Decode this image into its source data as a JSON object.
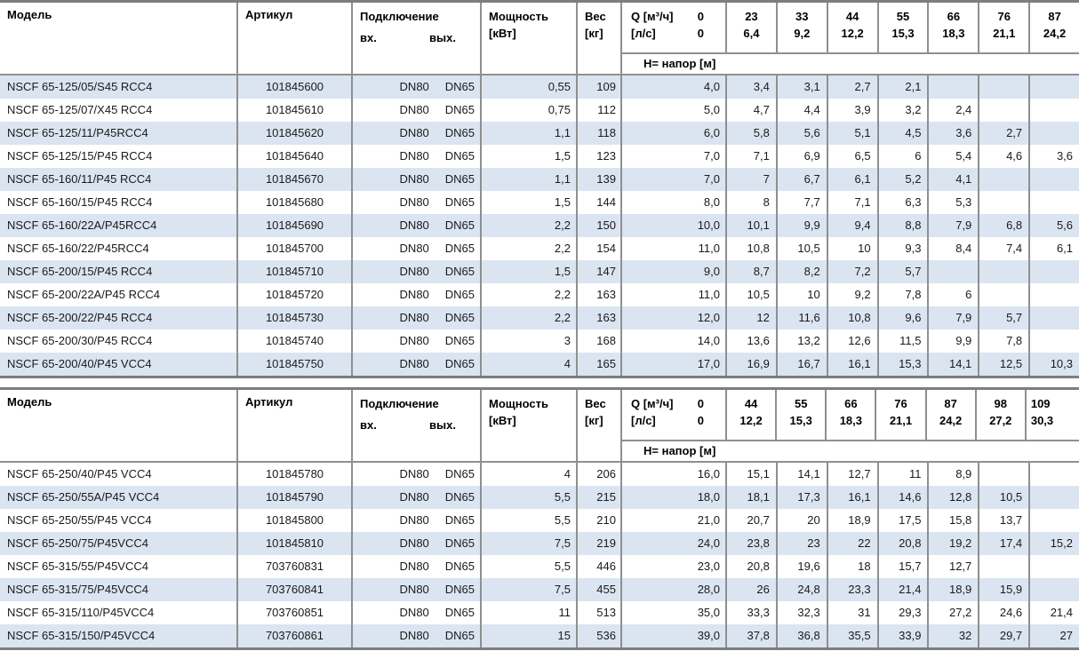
{
  "colors": {
    "row_stripe": "#dbe5f1",
    "grid_line": "#8f8f8f",
    "heavy_line": "#7d7d7d",
    "text": "#1a1a1a"
  },
  "tables": [
    {
      "header": {
        "model": "Модель",
        "article": "Артикул",
        "connection": "Подключение",
        "inlet": "вх.",
        "outlet": "вых.",
        "power_line1": "Мощность",
        "power_line2": "[кВт]",
        "weight_line1": "Вес",
        "weight_line2": "[кг]",
        "flow_line1": "Q [м³/ч]",
        "flow_line1_zero": "0",
        "flow_line2": "[л/с]",
        "flow_line2_zero": "0",
        "head_row_label": "Н= напор [м]"
      },
      "flow_columns": [
        {
          "m3h": "23",
          "ls": "6,4"
        },
        {
          "m3h": "33",
          "ls": "9,2"
        },
        {
          "m3h": "44",
          "ls": "12,2"
        },
        {
          "m3h": "55",
          "ls": "15,3"
        },
        {
          "m3h": "66",
          "ls": "18,3"
        },
        {
          "m3h": "76",
          "ls": "21,1"
        },
        {
          "m3h": "87",
          "ls": "24,2"
        }
      ],
      "rows": [
        {
          "model": "NSCF 65-125/05/S45 RCC4",
          "article": "101845600",
          "inlet": "DN80",
          "outlet": "DN65",
          "power": "0,55",
          "weight": "109",
          "head_q0": "4,0",
          "heads": [
            "3,4",
            "3,1",
            "2,7",
            "2,1",
            "",
            "",
            ""
          ]
        },
        {
          "model": "NSCF 65-125/07/X45 RCC4",
          "article": "101845610",
          "inlet": "DN80",
          "outlet": "DN65",
          "power": "0,75",
          "weight": "112",
          "head_q0": "5,0",
          "heads": [
            "4,7",
            "4,4",
            "3,9",
            "3,2",
            "2,4",
            "",
            ""
          ]
        },
        {
          "model": "NSCF 65-125/11/P45RCC4",
          "article": "101845620",
          "inlet": "DN80",
          "outlet": "DN65",
          "power": "1,1",
          "weight": "118",
          "head_q0": "6,0",
          "heads": [
            "5,8",
            "5,6",
            "5,1",
            "4,5",
            "3,6",
            "2,7",
            ""
          ]
        },
        {
          "model": "NSCF 65-125/15/P45 RCC4",
          "article": "101845640",
          "inlet": "DN80",
          "outlet": "DN65",
          "power": "1,5",
          "weight": "123",
          "head_q0": "7,0",
          "heads": [
            "7,1",
            "6,9",
            "6,5",
            "6",
            "5,4",
            "4,6",
            "3,6"
          ]
        },
        {
          "model": "NSCF 65-160/11/P45 RCC4",
          "article": "101845670",
          "inlet": "DN80",
          "outlet": "DN65",
          "power": "1,1",
          "weight": "139",
          "head_q0": "7,0",
          "heads": [
            "7",
            "6,7",
            "6,1",
            "5,2",
            "4,1",
            "",
            ""
          ]
        },
        {
          "model": "NSCF 65-160/15/P45 RCC4",
          "article": "101845680",
          "inlet": "DN80",
          "outlet": "DN65",
          "power": "1,5",
          "weight": "144",
          "head_q0": "8,0",
          "heads": [
            "8",
            "7,7",
            "7,1",
            "6,3",
            "5,3",
            "",
            ""
          ]
        },
        {
          "model": "NSCF 65-160/22A/P45RCC4",
          "article": "101845690",
          "inlet": "DN80",
          "outlet": "DN65",
          "power": "2,2",
          "weight": "150",
          "head_q0": "10,0",
          "heads": [
            "10,1",
            "9,9",
            "9,4",
            "8,8",
            "7,9",
            "6,8",
            "5,6"
          ]
        },
        {
          "model": "NSCF 65-160/22/P45RCC4",
          "article": "101845700",
          "inlet": "DN80",
          "outlet": "DN65",
          "power": "2,2",
          "weight": "154",
          "head_q0": "11,0",
          "heads": [
            "10,8",
            "10,5",
            "10",
            "9,3",
            "8,4",
            "7,4",
            "6,1"
          ]
        },
        {
          "model": "NSCF 65-200/15/P45 RCC4",
          "article": "101845710",
          "inlet": "DN80",
          "outlet": "DN65",
          "power": "1,5",
          "weight": "147",
          "head_q0": "9,0",
          "heads": [
            "8,7",
            "8,2",
            "7,2",
            "5,7",
            "",
            "",
            ""
          ]
        },
        {
          "model": "NSCF 65-200/22A/P45 RCC4",
          "article": "101845720",
          "inlet": "DN80",
          "outlet": "DN65",
          "power": "2,2",
          "weight": "163",
          "head_q0": "11,0",
          "heads": [
            "10,5",
            "10",
            "9,2",
            "7,8",
            "6",
            "",
            ""
          ]
        },
        {
          "model": "NSCF 65-200/22/P45 RCC4",
          "article": "101845730",
          "inlet": "DN80",
          "outlet": "DN65",
          "power": "2,2",
          "weight": "163",
          "head_q0": "12,0",
          "heads": [
            "12",
            "11,6",
            "10,8",
            "9,6",
            "7,9",
            "5,7",
            ""
          ]
        },
        {
          "model": "NSCF 65-200/30/P45 RCC4",
          "article": "101845740",
          "inlet": "DN80",
          "outlet": "DN65",
          "power": "3",
          "weight": "168",
          "head_q0": "14,0",
          "heads": [
            "13,6",
            "13,2",
            "12,6",
            "11,5",
            "9,9",
            "7,8",
            ""
          ]
        },
        {
          "model": "NSCF 65-200/40/P45 VCC4",
          "article": "101845750",
          "inlet": "DN80",
          "outlet": "DN65",
          "power": "4",
          "weight": "165",
          "head_q0": "17,0",
          "heads": [
            "16,9",
            "16,7",
            "16,1",
            "15,3",
            "14,1",
            "12,5",
            "10,3"
          ]
        }
      ]
    },
    {
      "header": {
        "model": "Модель",
        "article": "Артикул",
        "connection": "Подключение",
        "inlet": "вх.",
        "outlet": "вых.",
        "power_line1": "Мощность",
        "power_line2": "[кВт]",
        "weight_line1": "Вес",
        "weight_line2": "[кг]",
        "flow_line1": "Q [м³/ч]",
        "flow_line1_zero": "0",
        "flow_line2": "[л/с]",
        "flow_line2_zero": "0",
        "head_row_label": "Н= напор [м]"
      },
      "flow_columns": [
        {
          "m3h": "44",
          "ls": "12,2"
        },
        {
          "m3h": "55",
          "ls": "15,3"
        },
        {
          "m3h": "66",
          "ls": "18,3"
        },
        {
          "m3h": "76",
          "ls": "21,1"
        },
        {
          "m3h": "87",
          "ls": "24,2"
        },
        {
          "m3h": "98",
          "ls": "27,2"
        },
        {
          "m3h": "109",
          "ls": "30,3",
          "align": "left"
        }
      ],
      "rows": [
        {
          "model": "NSCF 65-250/40/P45 VCC4",
          "article": "101845780",
          "inlet": "DN80",
          "outlet": "DN65",
          "power": "4",
          "weight": "206",
          "head_q0": "16,0",
          "heads": [
            "15,1",
            "14,1",
            "12,7",
            "11",
            "8,9",
            "",
            ""
          ]
        },
        {
          "model": "NSCF 65-250/55A/P45 VCC4",
          "article": "101845790",
          "inlet": "DN80",
          "outlet": "DN65",
          "power": "5,5",
          "weight": "215",
          "head_q0": "18,0",
          "heads": [
            "18,1",
            "17,3",
            "16,1",
            "14,6",
            "12,8",
            "10,5",
            ""
          ]
        },
        {
          "model": "NSCF 65-250/55/P45 VCC4",
          "article": "101845800",
          "inlet": "DN80",
          "outlet": "DN65",
          "power": "5,5",
          "weight": "210",
          "head_q0": "21,0",
          "heads": [
            "20,7",
            "20",
            "18,9",
            "17,5",
            "15,8",
            "13,7",
            ""
          ]
        },
        {
          "model": "NSCF 65-250/75/P45VCC4",
          "article": "101845810",
          "inlet": "DN80",
          "outlet": "DN65",
          "power": "7,5",
          "weight": "219",
          "head_q0": "24,0",
          "heads": [
            "23,8",
            "23",
            "22",
            "20,8",
            "19,2",
            "17,4",
            "15,2"
          ]
        },
        {
          "model": "NSCF 65-315/55/P45VCC4",
          "article": "703760831",
          "inlet": "DN80",
          "outlet": "DN65",
          "power": "5,5",
          "weight": "446",
          "head_q0": "23,0",
          "heads": [
            "20,8",
            "19,6",
            "18",
            "15,7",
            "12,7",
            "",
            ""
          ]
        },
        {
          "model": "NSCF 65-315/75/P45VCC4",
          "article": "703760841",
          "inlet": "DN80",
          "outlet": "DN65",
          "power": "7,5",
          "weight": "455",
          "head_q0": "28,0",
          "heads": [
            "26",
            "24,8",
            "23,3",
            "21,4",
            "18,9",
            "15,9",
            ""
          ]
        },
        {
          "model": "NSCF 65-315/110/P45VCC4",
          "article": "703760851",
          "inlet": "DN80",
          "outlet": "DN65",
          "power": "11",
          "weight": "513",
          "head_q0": "35,0",
          "heads": [
            "33,3",
            "32,3",
            "31",
            "29,3",
            "27,2",
            "24,6",
            "21,4"
          ]
        },
        {
          "model": "NSCF 65-315/150/P45VCC4",
          "article": "703760861",
          "inlet": "DN80",
          "outlet": "DN65",
          "power": "15",
          "weight": "536",
          "head_q0": "39,0",
          "heads": [
            "37,8",
            "36,8",
            "35,5",
            "33,9",
            "32",
            "29,7",
            "27"
          ]
        }
      ]
    }
  ]
}
